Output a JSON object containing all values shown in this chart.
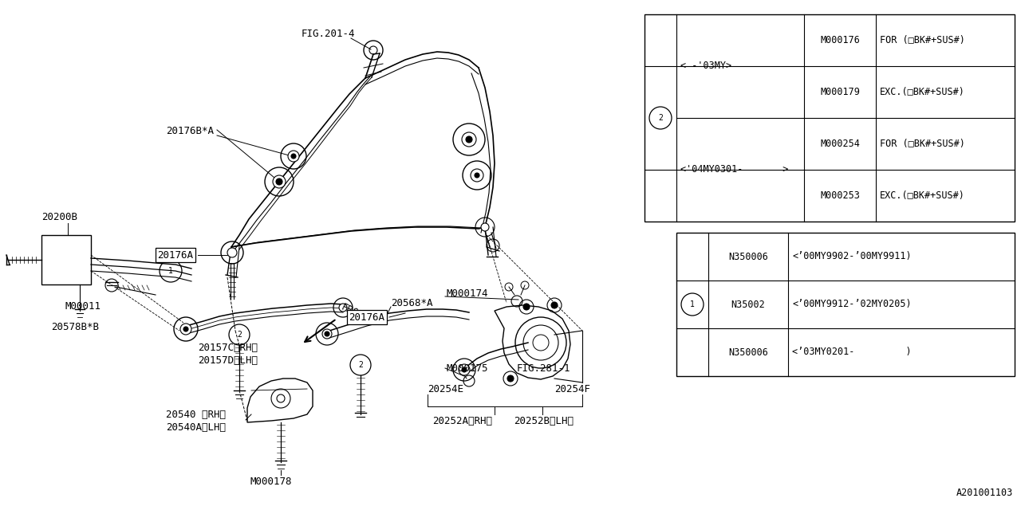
{
  "bg_color": "#ffffff",
  "line_color": "#000000",
  "fig_id": "A201001103",
  "table1_rows": [
    {
      "range": "< -’ 03MY>",
      "part": "M000176",
      "desc": "FOR (□BK#+SUS#)"
    },
    {
      "range": "",
      "part": "M000179",
      "desc": "EXC.(□BK#+SUS#)"
    },
    {
      "range": "<’04MY0301-      >",
      "part": "M000254",
      "desc": "FOR (□BK#+SUS#)"
    },
    {
      "range": "",
      "part": "M000253",
      "desc": "EXC.(□BK#+SUS#)"
    }
  ],
  "table2_rows": [
    {
      "part": "N350006",
      "desc": "<’00MY9902-’00MY9911)"
    },
    {
      "part": "N35002",
      "desc": "<’00MY9912-’02MY0205)"
    },
    {
      "part": "N350006",
      "desc": "<’03MY0201-         )"
    }
  ]
}
